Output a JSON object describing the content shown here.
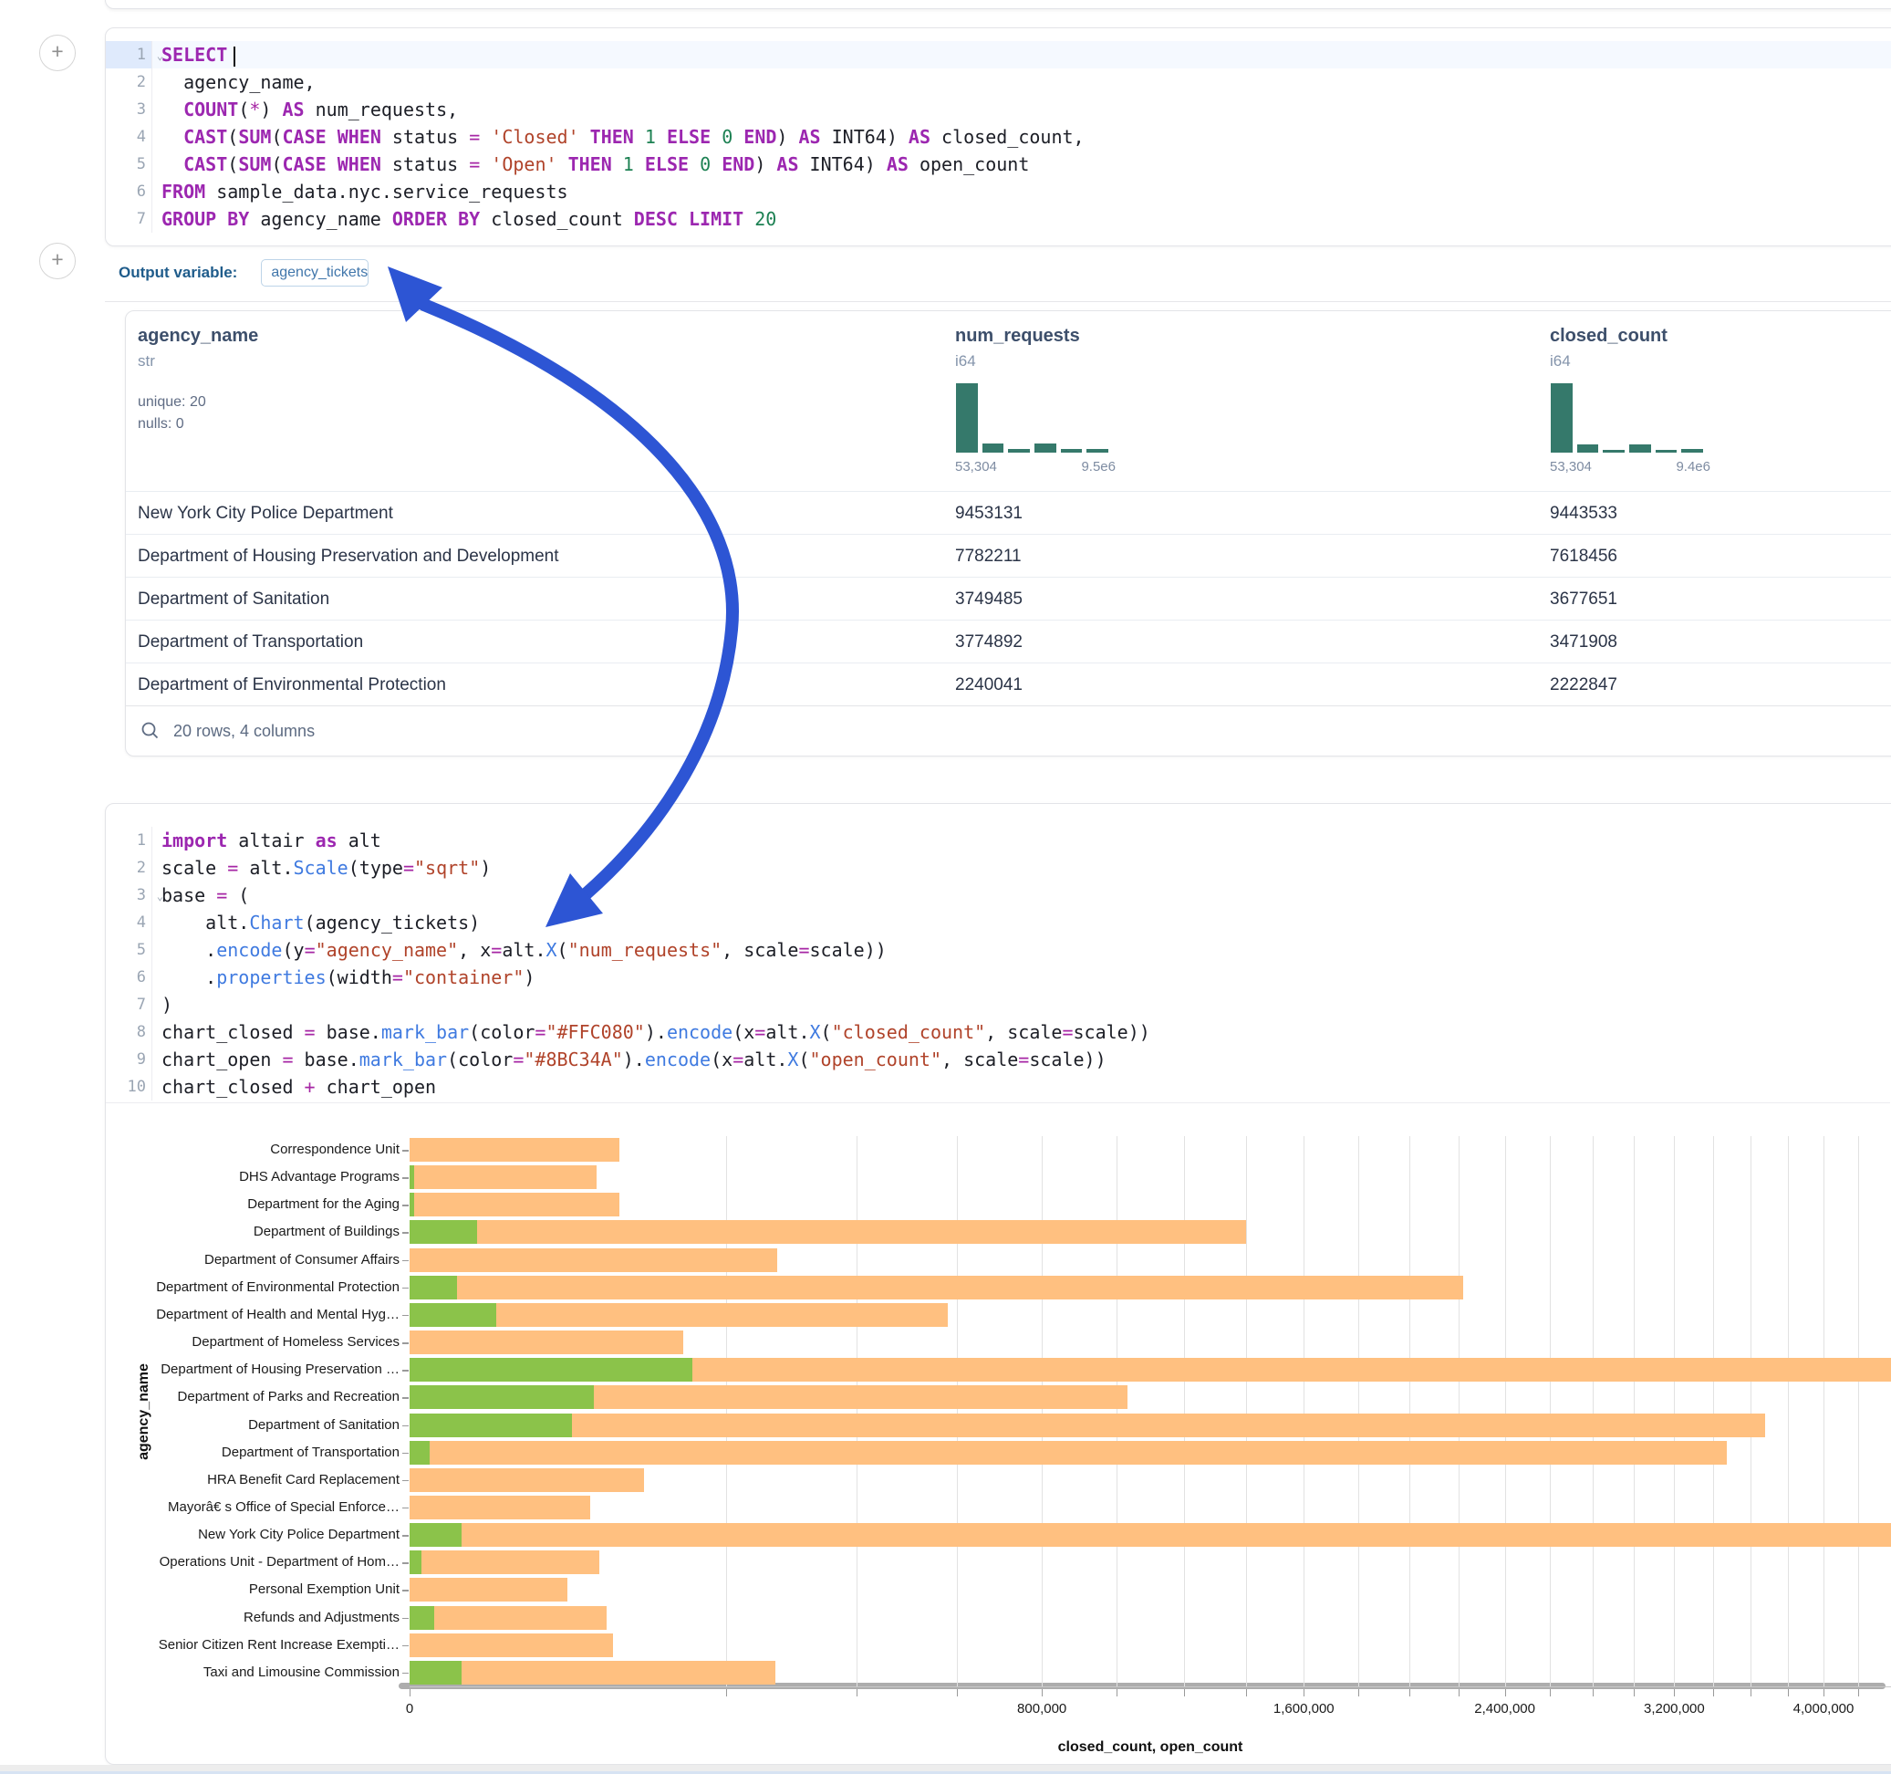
{
  "sql_cell": {
    "lines": [
      {
        "n": "1",
        "caret": true,
        "cursor": true,
        "tokens": [
          [
            "SELECT",
            "k"
          ]
        ]
      },
      {
        "n": "2",
        "tokens": [
          [
            "  agency_name,",
            "d"
          ]
        ]
      },
      {
        "n": "3",
        "tokens": [
          [
            "  ",
            "d"
          ],
          [
            "COUNT",
            "k"
          ],
          [
            "(",
            "d"
          ],
          [
            "*",
            "o"
          ],
          [
            ") ",
            "d"
          ],
          [
            "AS",
            "k"
          ],
          [
            " num_requests,",
            "d"
          ]
        ]
      },
      {
        "n": "4",
        "tokens": [
          [
            "  ",
            "d"
          ],
          [
            "CAST",
            "k"
          ],
          [
            "(",
            "d"
          ],
          [
            "SUM",
            "k"
          ],
          [
            "(",
            "d"
          ],
          [
            "CASE WHEN",
            "k"
          ],
          [
            " status ",
            "d"
          ],
          [
            "=",
            "o"
          ],
          [
            " ",
            "d"
          ],
          [
            "'Closed'",
            "s"
          ],
          [
            " ",
            "d"
          ],
          [
            "THEN",
            "k"
          ],
          [
            " ",
            "d"
          ],
          [
            "1",
            "n"
          ],
          [
            " ",
            "d"
          ],
          [
            "ELSE",
            "k"
          ],
          [
            " ",
            "d"
          ],
          [
            "0",
            "n"
          ],
          [
            " ",
            "d"
          ],
          [
            "END",
            "k"
          ],
          [
            ") ",
            "d"
          ],
          [
            "AS",
            "k"
          ],
          [
            " INT64) ",
            "d"
          ],
          [
            "AS",
            "k"
          ],
          [
            " closed_count,",
            "d"
          ]
        ]
      },
      {
        "n": "5",
        "tokens": [
          [
            "  ",
            "d"
          ],
          [
            "CAST",
            "k"
          ],
          [
            "(",
            "d"
          ],
          [
            "SUM",
            "k"
          ],
          [
            "(",
            "d"
          ],
          [
            "CASE WHEN",
            "k"
          ],
          [
            " status ",
            "d"
          ],
          [
            "=",
            "o"
          ],
          [
            " ",
            "d"
          ],
          [
            "'Open'",
            "s"
          ],
          [
            " ",
            "d"
          ],
          [
            "THEN",
            "k"
          ],
          [
            " ",
            "d"
          ],
          [
            "1",
            "n"
          ],
          [
            " ",
            "d"
          ],
          [
            "ELSE",
            "k"
          ],
          [
            " ",
            "d"
          ],
          [
            "0",
            "n"
          ],
          [
            " ",
            "d"
          ],
          [
            "END",
            "k"
          ],
          [
            ") ",
            "d"
          ],
          [
            "AS",
            "k"
          ],
          [
            " INT64) ",
            "d"
          ],
          [
            "AS",
            "k"
          ],
          [
            " open_count",
            "d"
          ]
        ]
      },
      {
        "n": "6",
        "tokens": [
          [
            "FROM",
            "k"
          ],
          [
            " sample_data.nyc.service_requests",
            "d"
          ]
        ]
      },
      {
        "n": "7",
        "tokens": [
          [
            "GROUP BY",
            "k"
          ],
          [
            " agency_name ",
            "d"
          ],
          [
            "ORDER BY",
            "k"
          ],
          [
            " closed_count ",
            "d"
          ],
          [
            "DESC",
            "k"
          ],
          [
            " ",
            "d"
          ],
          [
            "LIMIT",
            "k"
          ],
          [
            " ",
            "d"
          ],
          [
            "20",
            "n"
          ]
        ]
      }
    ]
  },
  "output_variable": {
    "label": "Output variable:",
    "value": "agency_tickets"
  },
  "table": {
    "columns": [
      {
        "name": "agency_name",
        "type": "str",
        "stats": [
          "unique: 20",
          "nulls: 0"
        ]
      },
      {
        "name": "num_requests",
        "type": "i64",
        "hist": {
          "min": "53,304",
          "max": "9.5e6",
          "bars": [
            100,
            16,
            8,
            15,
            8,
            8
          ]
        }
      },
      {
        "name": "closed_count",
        "type": "i64",
        "hist": {
          "min": "53,304",
          "max": "9.4e6",
          "bars": [
            100,
            14,
            7,
            14,
            7,
            8
          ]
        }
      }
    ],
    "rows": [
      [
        "New York City Police Department",
        "9453131",
        "9443533"
      ],
      [
        "Department of Housing Preservation and Development",
        "7782211",
        "7618456"
      ],
      [
        "Department of Sanitation",
        "3749485",
        "3677651"
      ],
      [
        "Department of Transportation",
        "3774892",
        "3471908"
      ],
      [
        "Department of Environmental Protection",
        "2240041",
        "2222847"
      ]
    ],
    "footer": "20 rows, 4 columns"
  },
  "python_cell": {
    "lines": [
      {
        "n": "1",
        "tokens": [
          [
            "import",
            "k"
          ],
          [
            " altair ",
            "d"
          ],
          [
            "as",
            "k"
          ],
          [
            " alt",
            "d"
          ]
        ]
      },
      {
        "n": "2",
        "tokens": [
          [
            "scale ",
            "d"
          ],
          [
            "=",
            "o"
          ],
          [
            " alt.",
            "d"
          ],
          [
            "Scale",
            "f"
          ],
          [
            "(type",
            "d"
          ],
          [
            "=",
            "o"
          ],
          [
            "\"sqrt\"",
            "s"
          ],
          [
            ")",
            "d"
          ]
        ]
      },
      {
        "n": "3",
        "caret": true,
        "tokens": [
          [
            "base ",
            "d"
          ],
          [
            "=",
            "o"
          ],
          [
            " (",
            "d"
          ]
        ]
      },
      {
        "n": "4",
        "tokens": [
          [
            "    alt.",
            "d"
          ],
          [
            "Chart",
            "f"
          ],
          [
            "(agency_tickets)",
            "d"
          ]
        ]
      },
      {
        "n": "5",
        "tokens": [
          [
            "    .",
            "d"
          ],
          [
            "encode",
            "f"
          ],
          [
            "(y",
            "d"
          ],
          [
            "=",
            "o"
          ],
          [
            "\"agency_name\"",
            "s"
          ],
          [
            ", x",
            "d"
          ],
          [
            "=",
            "o"
          ],
          [
            "alt.",
            "d"
          ],
          [
            "X",
            "f"
          ],
          [
            "(",
            "d"
          ],
          [
            "\"num_requests\"",
            "s"
          ],
          [
            ", scale",
            "d"
          ],
          [
            "=",
            "o"
          ],
          [
            "scale))",
            "d"
          ]
        ]
      },
      {
        "n": "6",
        "tokens": [
          [
            "    .",
            "d"
          ],
          [
            "properties",
            "f"
          ],
          [
            "(width",
            "d"
          ],
          [
            "=",
            "o"
          ],
          [
            "\"container\"",
            "s"
          ],
          [
            ")",
            "d"
          ]
        ]
      },
      {
        "n": "7",
        "tokens": [
          [
            ")",
            "d"
          ]
        ]
      },
      {
        "n": "8",
        "tokens": [
          [
            "chart_closed ",
            "d"
          ],
          [
            "=",
            "o"
          ],
          [
            " base.",
            "d"
          ],
          [
            "mark_bar",
            "f"
          ],
          [
            "(color",
            "d"
          ],
          [
            "=",
            "o"
          ],
          [
            "\"#FFC080\"",
            "s"
          ],
          [
            ").",
            "d"
          ],
          [
            "encode",
            "f"
          ],
          [
            "(x",
            "d"
          ],
          [
            "=",
            "o"
          ],
          [
            "alt.",
            "d"
          ],
          [
            "X",
            "f"
          ],
          [
            "(",
            "d"
          ],
          [
            "\"closed_count\"",
            "s"
          ],
          [
            ", scale",
            "d"
          ],
          [
            "=",
            "o"
          ],
          [
            "scale))",
            "d"
          ]
        ]
      },
      {
        "n": "9",
        "tokens": [
          [
            "chart_open ",
            "d"
          ],
          [
            "=",
            "o"
          ],
          [
            " base.",
            "d"
          ],
          [
            "mark_bar",
            "f"
          ],
          [
            "(color",
            "d"
          ],
          [
            "=",
            "o"
          ],
          [
            "\"#8BC34A\"",
            "s"
          ],
          [
            ").",
            "d"
          ],
          [
            "encode",
            "f"
          ],
          [
            "(x",
            "d"
          ],
          [
            "=",
            "o"
          ],
          [
            "alt.",
            "d"
          ],
          [
            "X",
            "f"
          ],
          [
            "(",
            "d"
          ],
          [
            "\"open_count\"",
            "s"
          ],
          [
            ", scale",
            "d"
          ],
          [
            "=",
            "o"
          ],
          [
            "scale))",
            "d"
          ]
        ]
      },
      {
        "n": "10",
        "tokens": [
          [
            "chart_closed ",
            "d"
          ],
          [
            "+",
            "o"
          ],
          [
            " chart_open",
            "d"
          ]
        ]
      }
    ]
  },
  "chart_data": {
    "type": "bar",
    "orientation": "horizontal",
    "x_scale": "sqrt",
    "xlabel": "closed_count, open_count",
    "ylabel": "agency_name",
    "grid": true,
    "x_axis": {
      "tick_step": 200000,
      "label_ticks": [
        0,
        800000,
        1600000,
        2400000,
        3200000,
        4000000
      ],
      "tick_labels": [
        "0",
        "800,000",
        "1,600,000",
        "2,400,000",
        "3,200,000",
        "4,000,000"
      ],
      "visible_max": 4300000
    },
    "categories": [
      "Correspondence Unit",
      "DHS Advantage Programs",
      "Department for the Aging",
      "Department of Buildings",
      "Department of Consumer Affairs",
      "Department of Environmental Protection",
      "Department of Health and Mental Hyg…",
      "Department of Homeless Services",
      "Department of Housing Preservation …",
      "Department of Parks and Recreation",
      "Department of Sanitation",
      "Department of Transportation",
      "HRA Benefit Card Replacement",
      "Mayorâ€ s Office of Special Enforce…",
      "New York City Police Department",
      "Operations Unit - Department of Hom…",
      "Personal Exemption Unit",
      "Refunds and Adjustments",
      "Senior Citizen Rent Increase Exempti…",
      "Taxi and Limousine Commission"
    ],
    "series": [
      {
        "name": "closed_count",
        "color": "#FFC080",
        "values": [
          88000,
          70000,
          88000,
          1400000,
          270000,
          2222847,
          580000,
          150000,
          7618456,
          1030000,
          3677651,
          3471908,
          110000,
          65000,
          9443533,
          72000,
          50000,
          78000,
          83000,
          268000
        ]
      },
      {
        "name": "open_count",
        "color": "#8BC34A",
        "values": [
          0,
          50,
          50,
          9000,
          0,
          4500,
          15000,
          0,
          160000,
          68000,
          53000,
          800,
          0,
          0,
          5500,
          300,
          0,
          1200,
          0,
          5500
        ]
      }
    ]
  },
  "annotation": {
    "arrow_color": "#2D55D4"
  }
}
